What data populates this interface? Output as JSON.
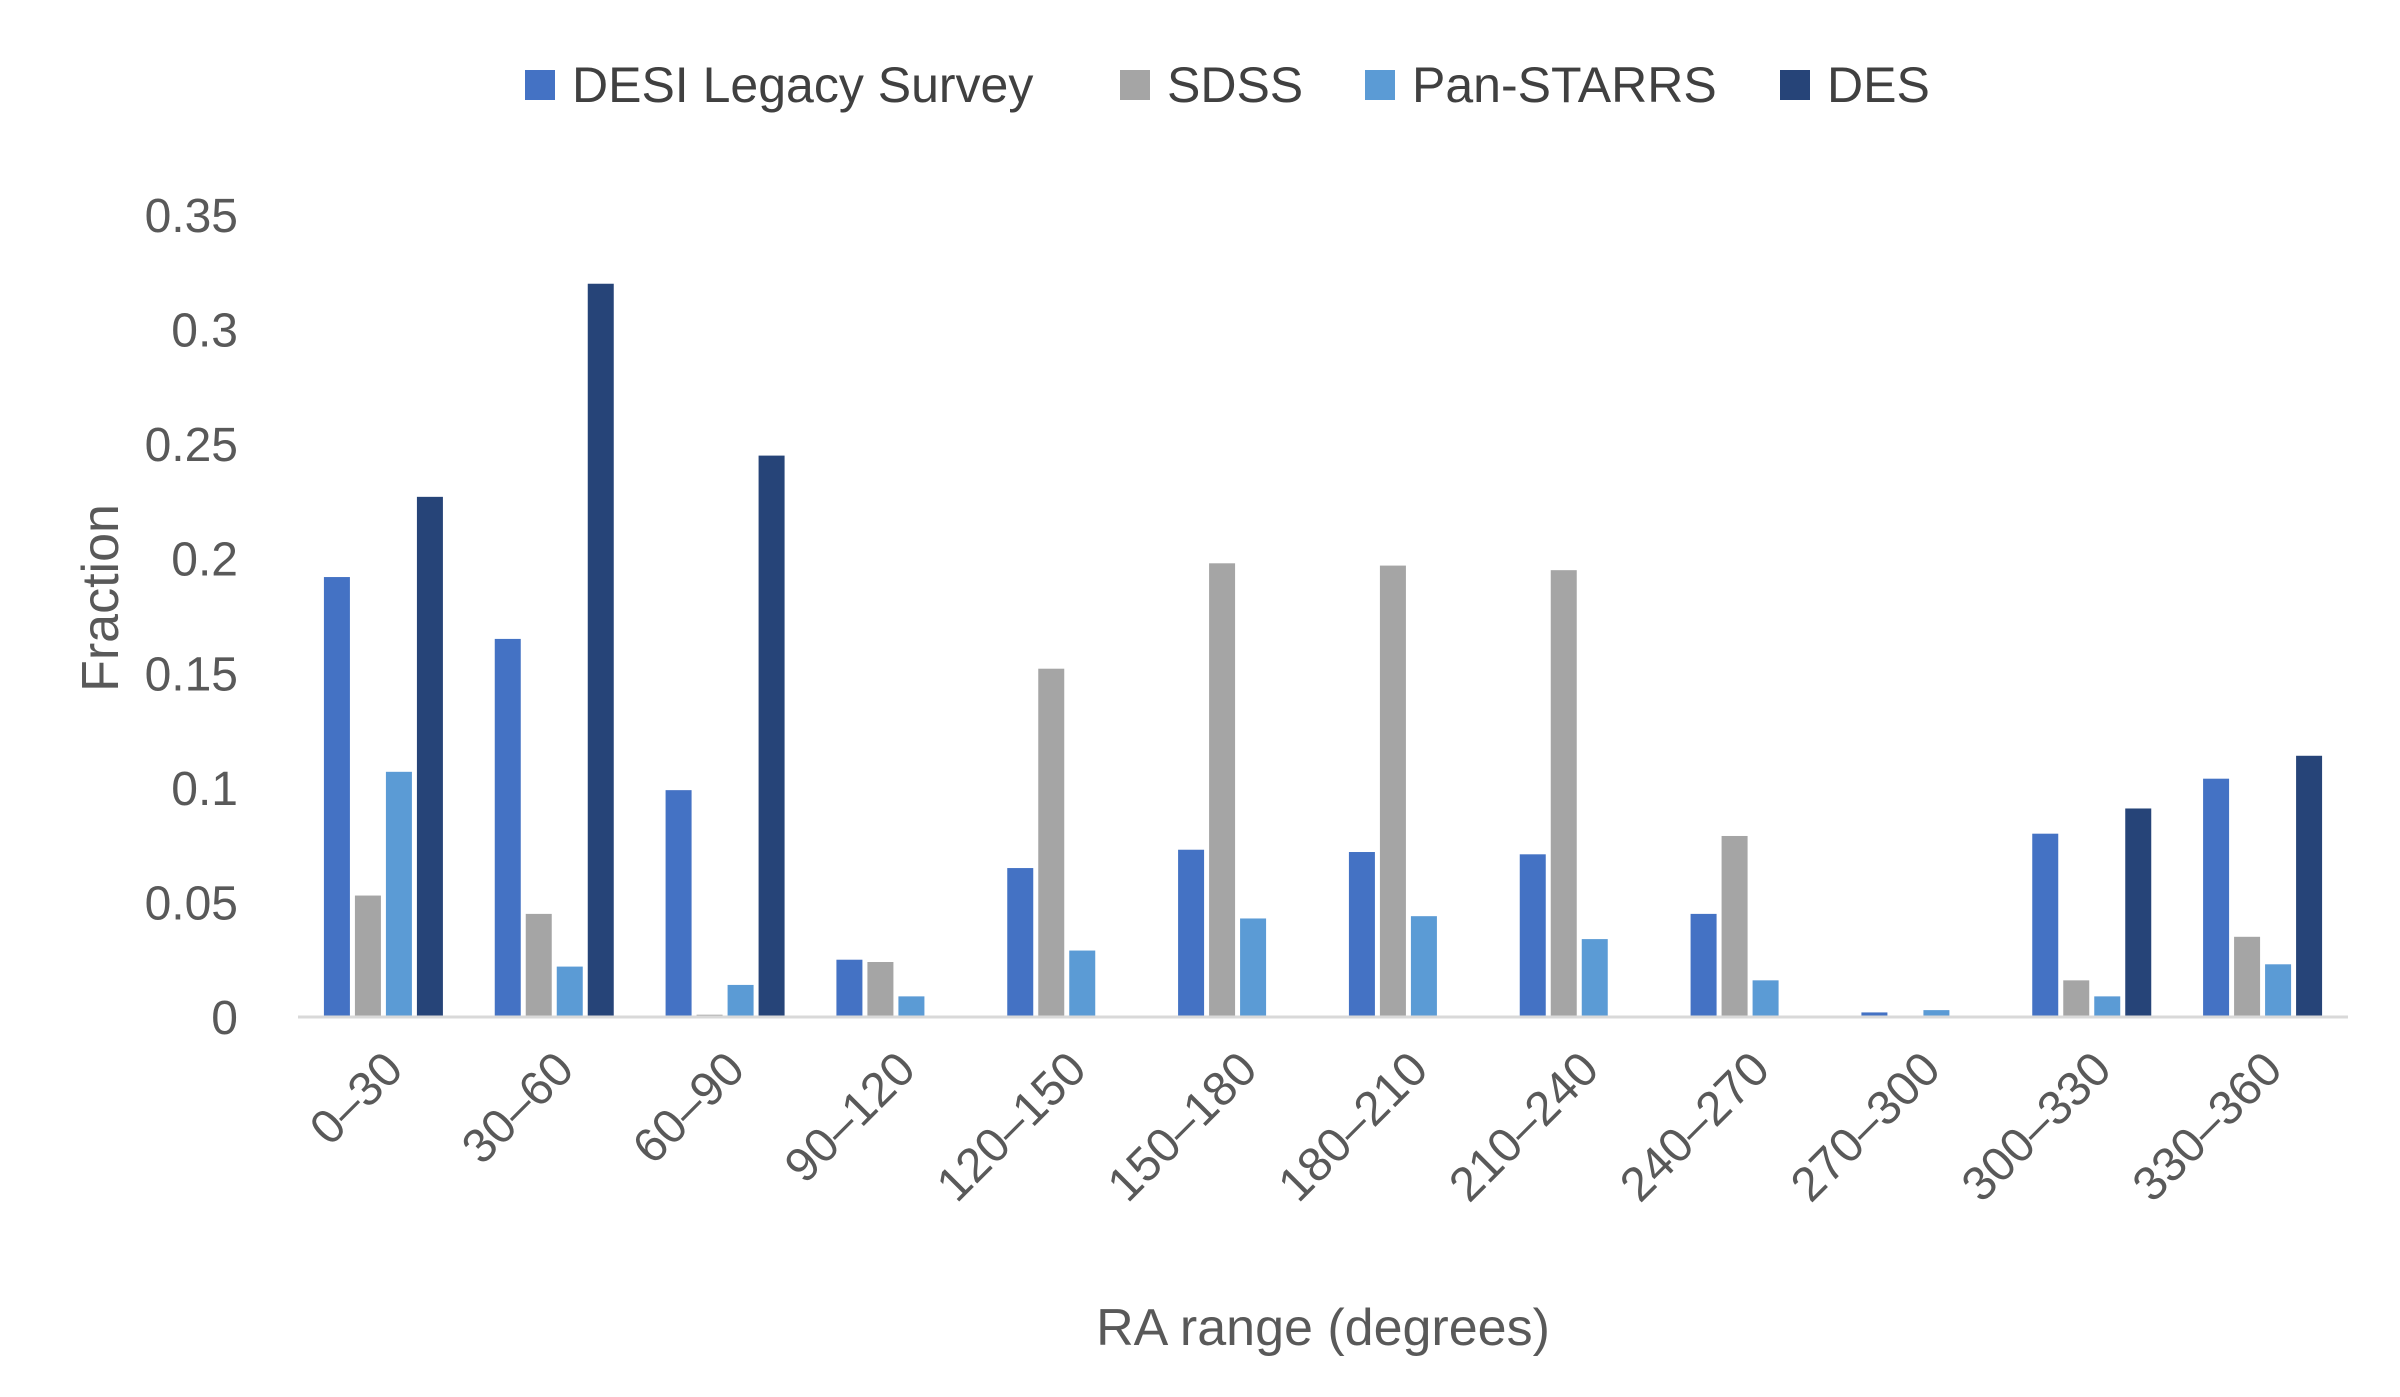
{
  "chart_data": {
    "type": "bar",
    "title": "",
    "xlabel": "RA range (degrees)",
    "ylabel": "Fraction",
    "ylim": [
      0,
      0.35
    ],
    "yticks": [
      0,
      0.05,
      0.1,
      0.15,
      0.2,
      0.25,
      0.3,
      0.35
    ],
    "ytick_labels": [
      "0",
      "0.05",
      "0.1",
      "0.15",
      "0.2",
      "0.25",
      "0.3",
      "0.35"
    ],
    "grid": false,
    "legend_position": "top-center",
    "categories": [
      "0–30",
      "30–60",
      "60–90",
      "90–120",
      "120–150",
      "150–180",
      "180–210",
      "210–240",
      "240–270",
      "270–300",
      "300–330",
      "330–360"
    ],
    "series": [
      {
        "name": "DESI Legacy Survey",
        "color": "#4472C4",
        "values": [
          0.192,
          0.165,
          0.099,
          0.025,
          0.065,
          0.073,
          0.072,
          0.071,
          0.045,
          0.002,
          0.08,
          0.104
        ]
      },
      {
        "name": "SDSS",
        "color": "#A5A5A5",
        "values": [
          0.053,
          0.045,
          0.001,
          0.024,
          0.152,
          0.198,
          0.197,
          0.195,
          0.079,
          0.0,
          0.016,
          0.035
        ]
      },
      {
        "name": "Pan-STARRS",
        "color": "#5B9BD5",
        "values": [
          0.107,
          0.022,
          0.014,
          0.009,
          0.029,
          0.043,
          0.044,
          0.034,
          0.016,
          0.003,
          0.009,
          0.023
        ]
      },
      {
        "name": "DES",
        "color": "#264478",
        "values": [
          0.227,
          0.32,
          0.245,
          0.0,
          0.0,
          0.0,
          0.0,
          0.0,
          0.0,
          0.0,
          0.091,
          0.114
        ]
      }
    ]
  }
}
